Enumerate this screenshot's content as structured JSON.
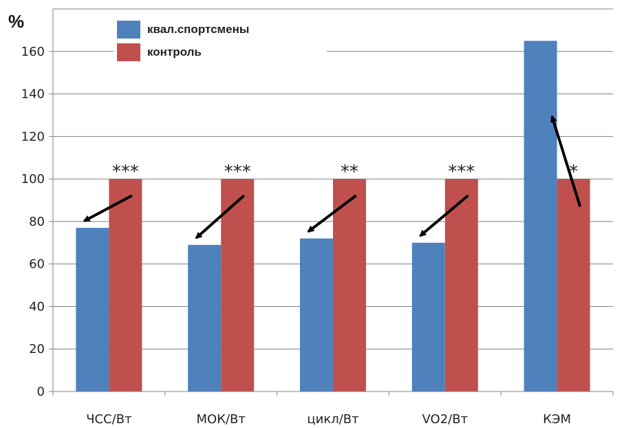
{
  "chart_data": {
    "type": "bar",
    "unit_label": "%",
    "categories": [
      "ЧСС/Вт",
      "МОК/Вт",
      "цикл/Вт",
      "VO2/Вт",
      "КЭМ"
    ],
    "series": [
      {
        "name": "квал.спортсмены",
        "color": "#4f81bd",
        "values": [
          77,
          69,
          72,
          70,
          165
        ]
      },
      {
        "name": "контроль",
        "color": "#c0504d",
        "values": [
          100,
          100,
          100,
          100,
          100
        ]
      }
    ],
    "significance": [
      "***",
      "***",
      "**",
      "***",
      "*"
    ],
    "arrow_directions": [
      "down",
      "down",
      "down",
      "down",
      "up"
    ],
    "ylim": [
      0,
      180
    ],
    "yticks": [
      "0",
      "20",
      "40",
      "60",
      "80",
      "100",
      "120",
      "140",
      "160"
    ],
    "grid": "horizontal",
    "legend_position": "top-left"
  }
}
